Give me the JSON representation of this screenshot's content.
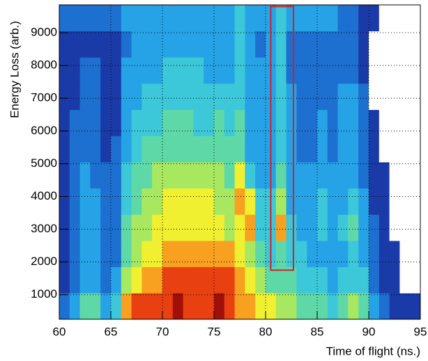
{
  "chart_data": {
    "type": "heatmap",
    "x_label": "Time of flight (ns.)",
    "y_label": "Energy Loss (arb.)",
    "xlim": [
      60,
      95
    ],
    "ylim": [
      250,
      9850
    ],
    "xticks": [
      60,
      65,
      70,
      75,
      80,
      85,
      90,
      95
    ],
    "yticks": [
      1000,
      2000,
      3000,
      4000,
      5000,
      6000,
      7000,
      8000,
      9000
    ],
    "grid": true,
    "xbins": [
      60,
      61,
      62,
      63,
      64,
      65,
      66,
      67,
      68,
      69,
      70,
      71,
      72,
      73,
      74,
      75,
      76,
      77,
      78,
      79,
      80,
      81,
      82,
      83,
      84,
      85,
      86,
      87,
      88,
      89,
      90,
      91,
      92,
      93,
      94,
      95
    ],
    "ybins": [
      250,
      1050,
      1850,
      2650,
      3450,
      4250,
      5050,
      5850,
      6650,
      7450,
      8250,
      9050,
      9850
    ],
    "colormap": [
      "#ffffff",
      "#1a3aa8",
      "#1d6fd0",
      "#26a3e6",
      "#3cc8d8",
      "#5fd8a8",
      "#a8e860",
      "#f0f030",
      "#f8a020",
      "#e84010",
      "#a01008"
    ],
    "z": [
      [
        2,
        3,
        5,
        5,
        3,
        4,
        8,
        9,
        9,
        9,
        9,
        10,
        9,
        9,
        9,
        10,
        9,
        8,
        8,
        7,
        7,
        6,
        6,
        5,
        5,
        5,
        4,
        5,
        6,
        5,
        3,
        2,
        1,
        1,
        1
      ],
      [
        1,
        2,
        3,
        3,
        2,
        3,
        6,
        7,
        8,
        8,
        9,
        9,
        9,
        9,
        9,
        9,
        9,
        8,
        7,
        6,
        5,
        5,
        5,
        4,
        4,
        4,
        3,
        4,
        4,
        4,
        2,
        1,
        1,
        0,
        0
      ],
      [
        1,
        2,
        3,
        3,
        2,
        2,
        5,
        6,
        7,
        7,
        8,
        8,
        8,
        8,
        8,
        8,
        8,
        7,
        6,
        5,
        4,
        5,
        4,
        4,
        3,
        3,
        3,
        3,
        4,
        3,
        2,
        1,
        1,
        0,
        0
      ],
      [
        1,
        2,
        3,
        3,
        2,
        2,
        5,
        6,
        6,
        7,
        7,
        7,
        7,
        7,
        7,
        7,
        6,
        7,
        8,
        4,
        4,
        8,
        4,
        3,
        3,
        4,
        3,
        4,
        5,
        3,
        2,
        1,
        0,
        0,
        0
      ],
      [
        1,
        2,
        3,
        3,
        2,
        2,
        4,
        5,
        6,
        6,
        7,
        7,
        7,
        7,
        7,
        6,
        6,
        8,
        7,
        4,
        4,
        6,
        3,
        3,
        3,
        4,
        3,
        3,
        4,
        3,
        1,
        1,
        0,
        0,
        0
      ],
      [
        1,
        2,
        3,
        2,
        2,
        2,
        4,
        5,
        5,
        6,
        6,
        6,
        6,
        6,
        6,
        6,
        5,
        7,
        4,
        3,
        3,
        5,
        3,
        3,
        3,
        3,
        3,
        3,
        3,
        2,
        1,
        1,
        0,
        0,
        0
      ],
      [
        1,
        2,
        2,
        2,
        1,
        2,
        3,
        4,
        5,
        5,
        5,
        5,
        5,
        5,
        5,
        5,
        5,
        5,
        3,
        3,
        3,
        4,
        3,
        2,
        2,
        3,
        2,
        3,
        3,
        2,
        1,
        0,
        0,
        0,
        0
      ],
      [
        1,
        2,
        2,
        2,
        1,
        1,
        3,
        4,
        4,
        4,
        5,
        5,
        5,
        4,
        4,
        5,
        4,
        5,
        3,
        3,
        3,
        4,
        3,
        2,
        2,
        3,
        2,
        3,
        3,
        2,
        1,
        0,
        0,
        0,
        0
      ],
      [
        1,
        1,
        2,
        2,
        1,
        1,
        3,
        3,
        4,
        4,
        4,
        4,
        4,
        4,
        4,
        4,
        4,
        4,
        3,
        3,
        3,
        4,
        3,
        2,
        2,
        2,
        2,
        3,
        3,
        2,
        0,
        0,
        0,
        0,
        0
      ],
      [
        1,
        1,
        2,
        2,
        1,
        1,
        3,
        3,
        3,
        3,
        4,
        4,
        4,
        4,
        3,
        3,
        3,
        4,
        3,
        3,
        3,
        4,
        2,
        2,
        2,
        2,
        2,
        2,
        2,
        1,
        0,
        0,
        0,
        0,
        0
      ],
      [
        1,
        1,
        1,
        1,
        1,
        1,
        2,
        3,
        3,
        3,
        3,
        3,
        3,
        3,
        3,
        3,
        3,
        4,
        3,
        2,
        3,
        4,
        2,
        2,
        2,
        2,
        2,
        2,
        2,
        1,
        0,
        0,
        0,
        0,
        0
      ],
      [
        2,
        2,
        2,
        2,
        2,
        2,
        3,
        3,
        3,
        3,
        3,
        3,
        3,
        3,
        3,
        3,
        3,
        4,
        3,
        3,
        3,
        4,
        3,
        3,
        3,
        3,
        3,
        2,
        2,
        1,
        1,
        0,
        0,
        0,
        0
      ]
    ],
    "selection": {
      "x": [
        80.5,
        82.7
      ],
      "y": [
        1750,
        9800
      ],
      "color": "#d0202a"
    }
  }
}
